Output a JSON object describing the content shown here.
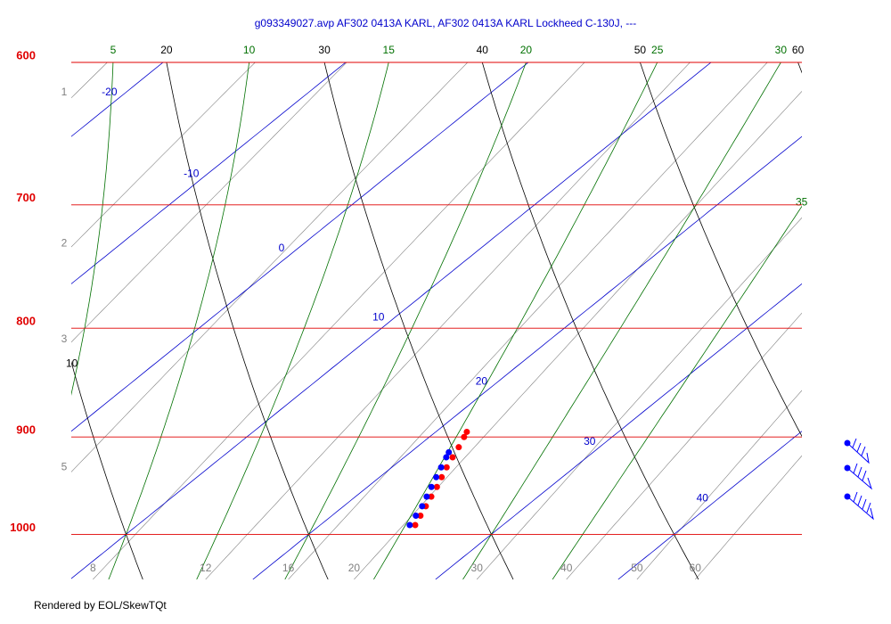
{
  "chart_data": {
    "type": "skewt",
    "title": "g093349027.avp  AF302 0413A KARL, AF302 0413A KARL Lockheed C-130J, ---",
    "ylim": [
      1050,
      600
    ],
    "yticks": [
      1000,
      900,
      800,
      700,
      600
    ],
    "log_y": true,
    "xlim": [
      7,
      47
    ],
    "isobar_color": "#e00000",
    "isotherms": {
      "values": [
        -20,
        -10,
        0,
        10,
        20,
        30,
        40
      ],
      "color": "#0000cc"
    },
    "dry_adiabats": {
      "values": [
        10,
        20,
        30,
        40,
        50,
        60
      ],
      "color": "#000000"
    },
    "moist_adiabats": {
      "values": [
        5,
        10,
        15,
        20,
        25,
        30,
        35
      ],
      "color": "#007000"
    },
    "mixing_ratios": {
      "values": [
        1,
        2,
        3,
        5,
        8,
        12,
        16,
        20,
        30,
        40,
        50,
        60
      ],
      "color": "#808080"
    },
    "series": [
      {
        "color": "#ff0000",
        "pressure": [
          990,
          980,
          970,
          960,
          950,
          940,
          930,
          920,
          910,
          900,
          895
        ],
        "values": [
          25.2,
          24.85,
          24.5,
          24.15,
          23.8,
          23.4,
          23.0,
          22.65,
          22.3,
          21.9,
          21.7
        ]
      },
      {
        "color": "#0000ff",
        "pressure": [
          990,
          980,
          970,
          960,
          950,
          940,
          930,
          920,
          915
        ],
        "values": [
          24.9,
          24.6,
          24.3,
          23.9,
          23.5,
          23.1,
          22.7,
          22.3,
          22.1
        ]
      }
    ]
  },
  "footer": "Rendered by EOL/SkewTQt"
}
